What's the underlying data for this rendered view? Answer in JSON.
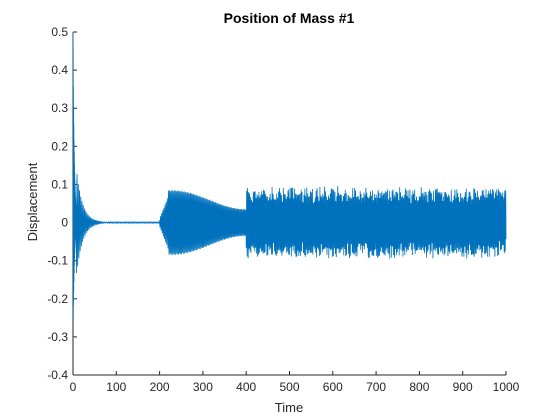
{
  "chart_data": {
    "type": "line",
    "title": "Position of Mass #1",
    "xlabel": "Time",
    "ylabel": "Displacement",
    "xlim": [
      0,
      1000
    ],
    "ylim": [
      -0.4,
      0.5
    ],
    "xticks": [
      "0",
      "100",
      "200",
      "300",
      "400",
      "500",
      "600",
      "700",
      "800",
      "900",
      "1000"
    ],
    "yticks": [
      "-0.4",
      "-0.3",
      "-0.2",
      "-0.1",
      "0",
      "0.1",
      "0.2",
      "0.3",
      "0.4",
      "0.5"
    ],
    "grid": false,
    "line_color": "#0072BD",
    "series": [
      {
        "description": "oscillating displacement",
        "phases": [
          {
            "x_start": 0,
            "x_end": 8,
            "behavior": "initial spike",
            "max": 0.5,
            "min": -0.33
          },
          {
            "x_start": 8,
            "x_end": 80,
            "behavior": "decaying oscillation",
            "amplitude_start": 0.14,
            "amplitude_end": 0.0
          },
          {
            "x_start": 80,
            "x_end": 200,
            "behavior": "near rest",
            "amplitude": 0.002
          },
          {
            "x_start": 200,
            "x_end": 220,
            "behavior": "rising oscillation",
            "amplitude_start": 0.01,
            "amplitude_end": 0.07
          },
          {
            "x_start": 220,
            "x_end": 400,
            "behavior": "beating oscillation",
            "amplitude_max": 0.085,
            "amplitude_min": 0.035
          },
          {
            "x_start": 400,
            "x_end": 1000,
            "behavior": "irregular oscillation",
            "amplitude": 0.095
          }
        ]
      }
    ]
  }
}
